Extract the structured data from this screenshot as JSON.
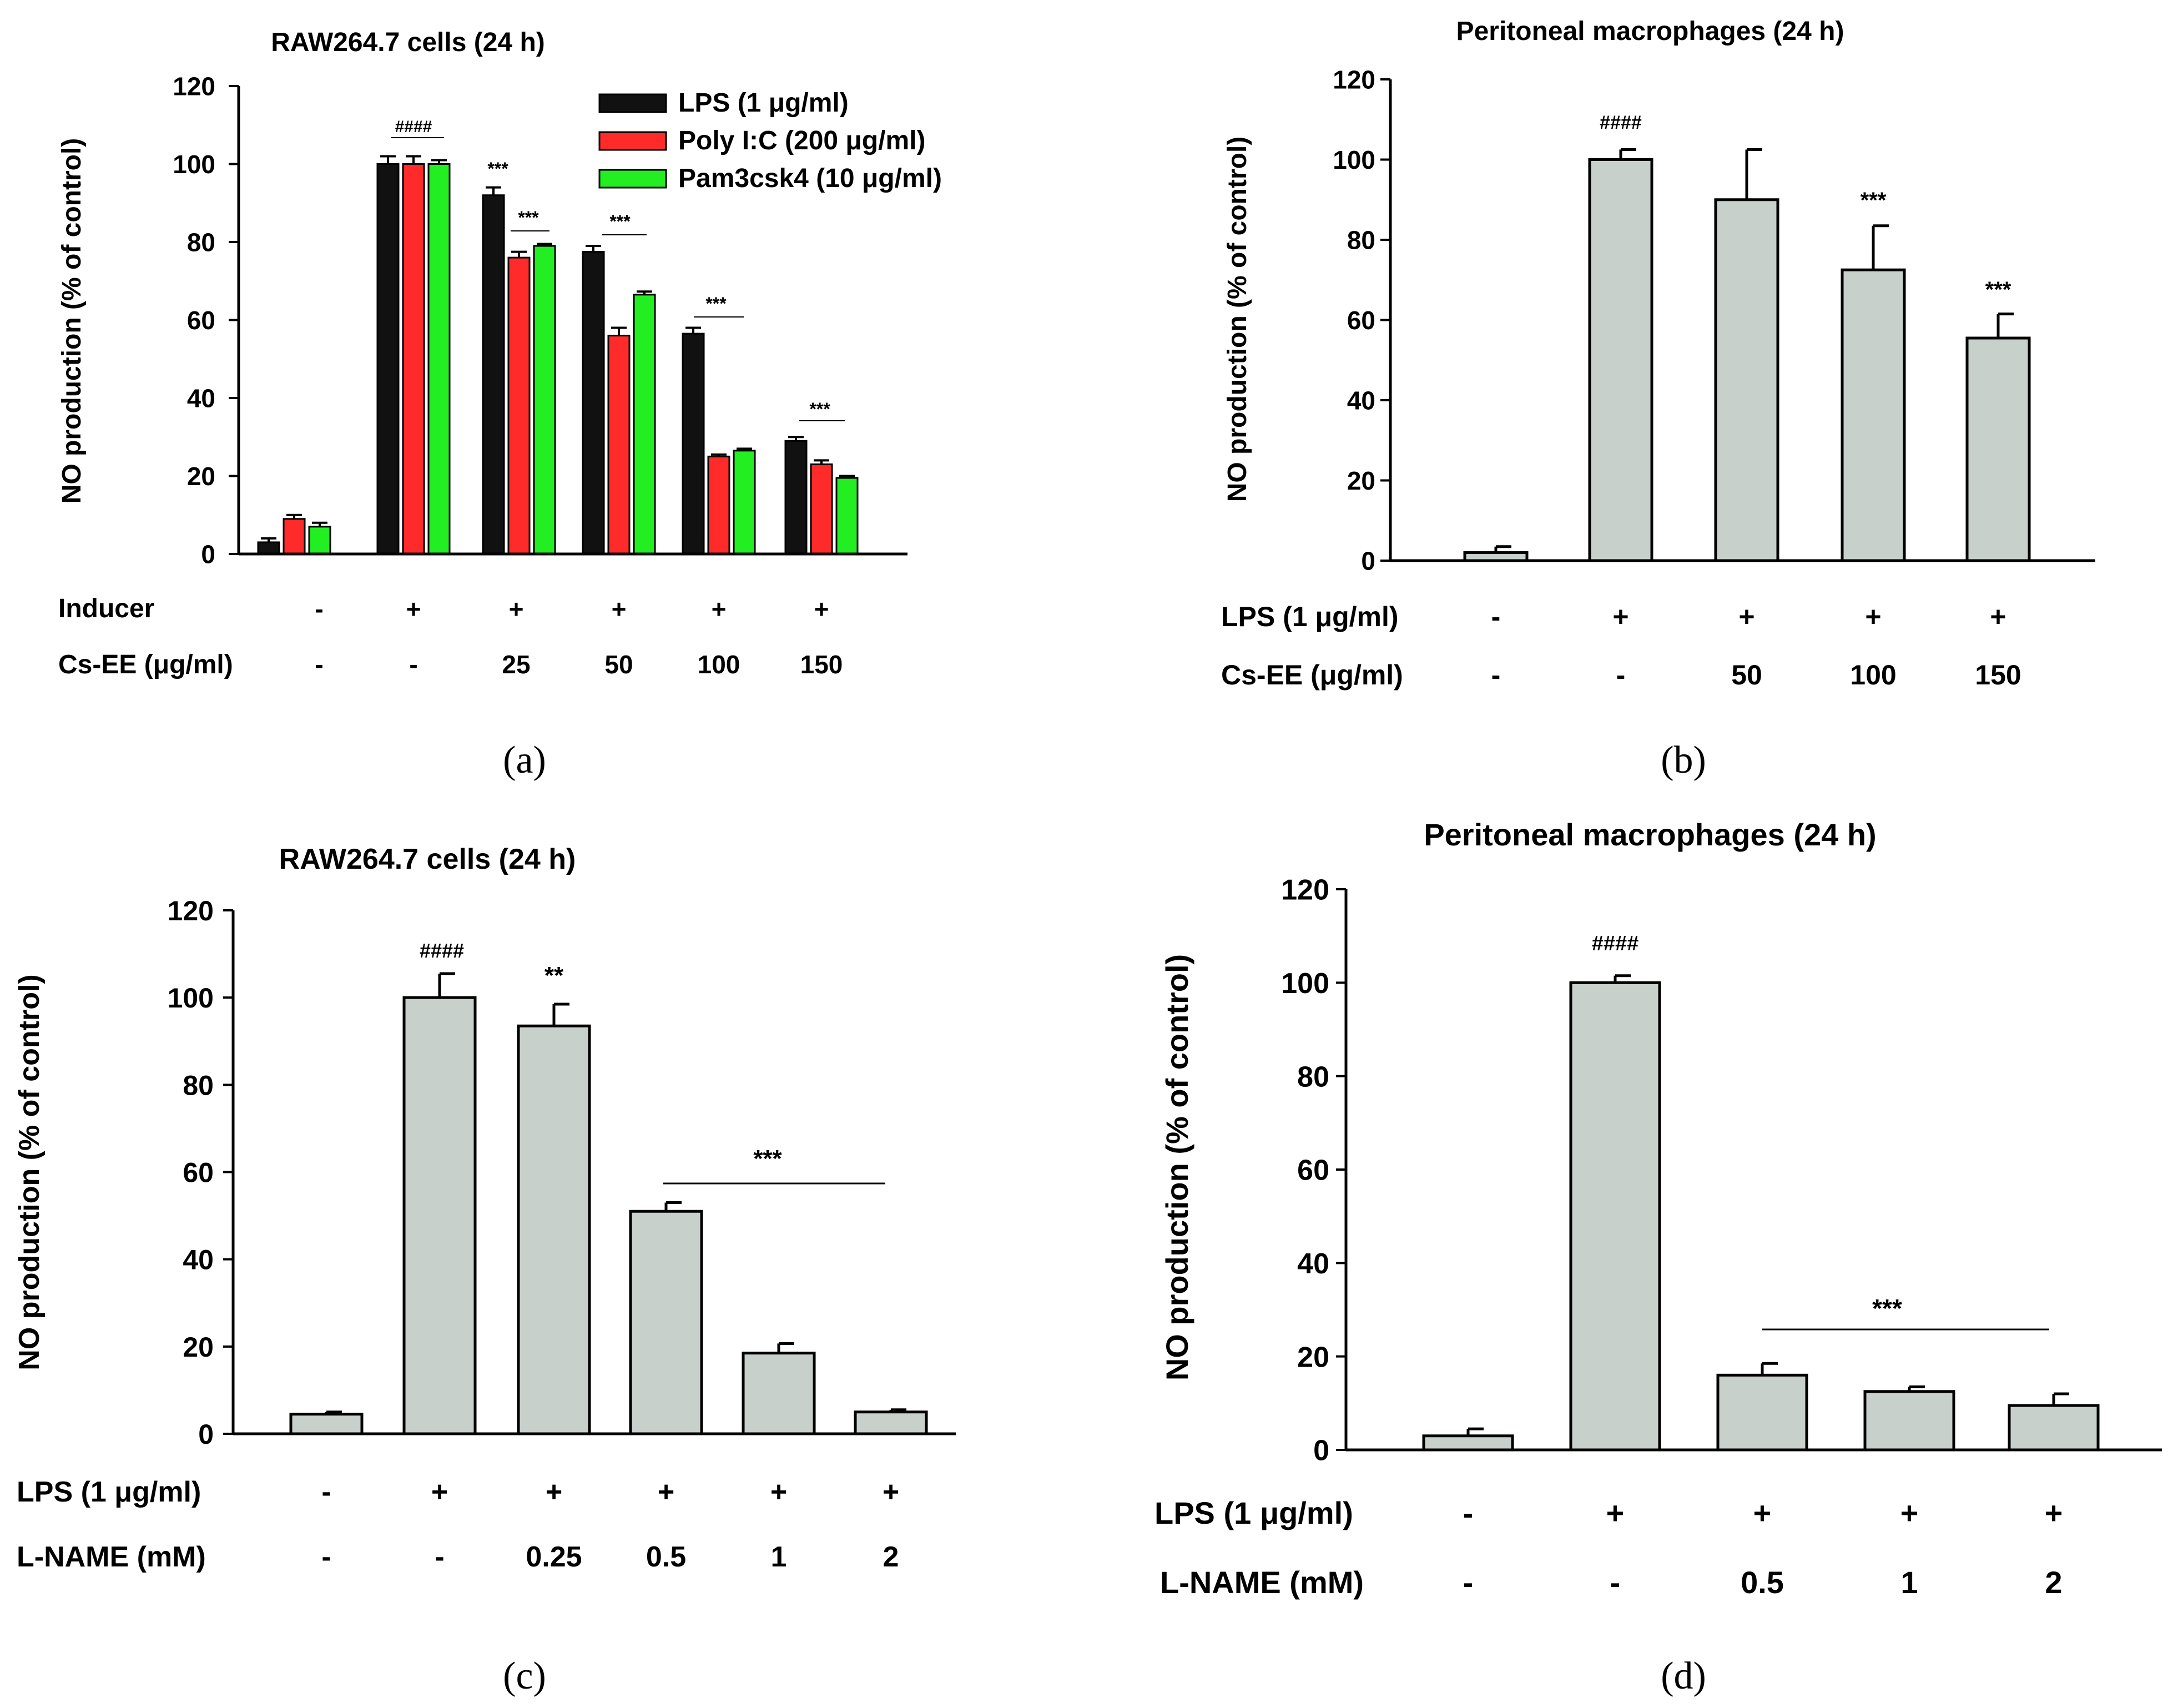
{
  "chart_data": [
    {
      "panel": "(a)",
      "type": "bar",
      "title": "RAW264.7 cells (24 h)",
      "ylabel": "NO production (% of control)",
      "ylim": [
        0,
        120
      ],
      "yticks": [
        "0",
        "20",
        "40",
        "60",
        "80",
        "100",
        "120"
      ],
      "series": [
        {
          "name": "LPS (1 μg/ml)",
          "color": "#111111",
          "values": [
            3,
            100,
            92,
            77.5,
            56.5,
            29
          ],
          "errors": [
            1,
            2,
            2,
            1.5,
            1.5,
            1
          ]
        },
        {
          "name": "Poly I:C (200 μg/ml)",
          "color": "#ff2a2a",
          "values": [
            9,
            100,
            76,
            56,
            25,
            23
          ],
          "errors": [
            1,
            2,
            1.5,
            2,
            0.5,
            1
          ]
        },
        {
          "name": "Pam3csk4 (10 μg/ml)",
          "color": "#22ee22",
          "values": [
            7,
            100,
            79,
            66.5,
            26.5,
            19.5
          ],
          "errors": [
            1,
            1,
            0.5,
            0.8,
            0.5,
            0.5
          ]
        }
      ],
      "conditions": [
        {
          "label": "Inducer",
          "values": [
            "-",
            "+",
            "+",
            "+",
            "+",
            "+"
          ]
        },
        {
          "label": "Cs-EE (μg/ml)",
          "values": [
            "-",
            "-",
            "25",
            "50",
            "100",
            "150"
          ]
        }
      ],
      "annotations": [
        "####",
        "***",
        "***",
        "***",
        "***",
        "***"
      ]
    },
    {
      "panel": "(b)",
      "type": "bar",
      "title": "Peritoneal macrophages (24 h)",
      "ylabel": "NO production (% of control)",
      "ylim": [
        0,
        120
      ],
      "yticks": [
        "0",
        "20",
        "40",
        "60",
        "80",
        "100",
        "120"
      ],
      "bar_color": "#c8d0cc",
      "values": [
        2,
        100,
        90,
        72.5,
        55.5
      ],
      "errors": [
        1.5,
        2.5,
        12.5,
        11,
        6
      ],
      "conditions": [
        {
          "label": "LPS (1 μg/ml)",
          "values": [
            "-",
            "+",
            "+",
            "+",
            "+"
          ]
        },
        {
          "label": "Cs-EE (μg/ml)",
          "values": [
            "-",
            "-",
            "50",
            "100",
            "150"
          ]
        }
      ],
      "annotations": [
        "####",
        "***",
        "***"
      ]
    },
    {
      "panel": "(c)",
      "type": "bar",
      "title": "RAW264.7 cells (24 h)",
      "ylabel": "NO production (% of control)",
      "ylim": [
        0,
        120
      ],
      "yticks": [
        "0",
        "20",
        "40",
        "60",
        "80",
        "100",
        "120"
      ],
      "bar_color": "#c8d0cc",
      "values": [
        4.5,
        100,
        93.5,
        51,
        18.5,
        5
      ],
      "errors": [
        0.5,
        5.5,
        5,
        2,
        2.2,
        0.5
      ],
      "conditions": [
        {
          "label": "LPS (1 μg/ml)",
          "values": [
            "-",
            "+",
            "+",
            "+",
            "+",
            "+"
          ]
        },
        {
          "label": "L-NAME (mM)",
          "values": [
            "-",
            "-",
            "0.25",
            "0.5",
            "1",
            "2"
          ]
        }
      ],
      "annotations": [
        "####",
        "**",
        "***"
      ]
    },
    {
      "panel": "(d)",
      "type": "bar",
      "title": "Peritoneal macrophages (24 h)",
      "ylabel": "NO production (% of control)",
      "ylim": [
        0,
        120
      ],
      "yticks": [
        "0",
        "20",
        "40",
        "60",
        "80",
        "100",
        "120"
      ],
      "bar_color": "#c8d0cc",
      "values": [
        3,
        100,
        16,
        12.5,
        9.5
      ],
      "errors": [
        1.5,
        1.5,
        2.5,
        1,
        2.5
      ],
      "conditions": [
        {
          "label": "LPS (1 μg/ml)",
          "values": [
            "-",
            "+",
            "+",
            "+",
            "+"
          ]
        },
        {
          "label": "L-NAME (mM)",
          "values": [
            "-",
            "-",
            "0.5",
            "1",
            "2"
          ]
        }
      ],
      "annotations": [
        "####",
        "***"
      ]
    }
  ]
}
